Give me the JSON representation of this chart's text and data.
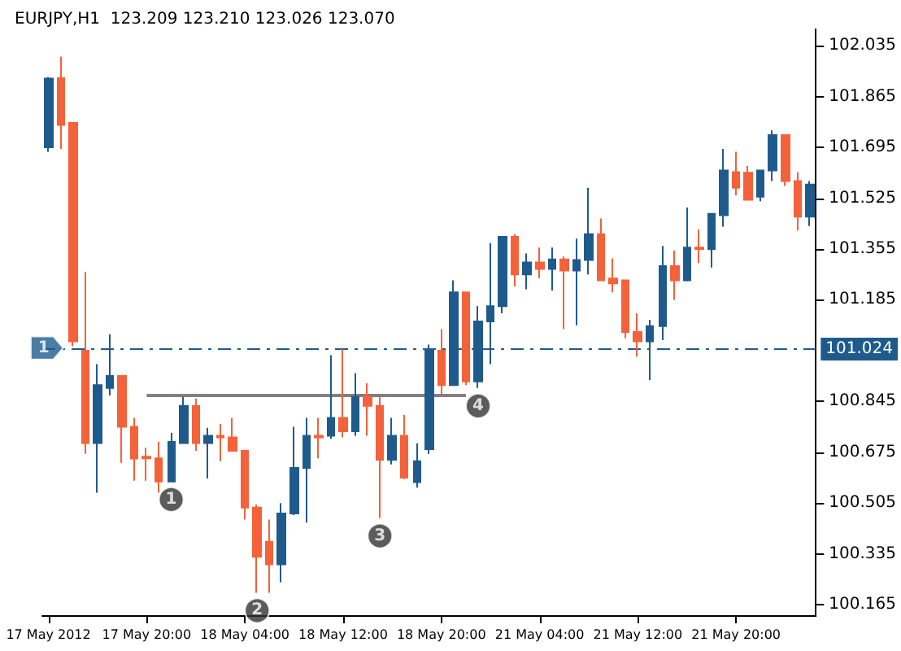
{
  "chart_data": {
    "type": "candlestick",
    "title": "EURJPY,H1  123.209 123.210 123.026 123.070",
    "categories": [
      "17 May 2012",
      null,
      null,
      null,
      null,
      null,
      null,
      null,
      "17 May 20:00",
      null,
      null,
      null,
      null,
      null,
      null,
      null,
      "18 May 04:00",
      null,
      null,
      null,
      null,
      null,
      null,
      null,
      "18 May 12:00",
      null,
      null,
      null,
      null,
      null,
      null,
      null,
      "18 May 20:00",
      null,
      null,
      null,
      null,
      null,
      null,
      null,
      "21 May 04:00",
      null,
      null,
      null,
      null,
      null,
      null,
      null,
      "21 May 12:00",
      null,
      null,
      null,
      null,
      null,
      null,
      null,
      "21 May 20:00",
      null,
      null,
      null,
      null,
      null,
      null
    ],
    "series": [
      {
        "ohlc": [
          [
            101.695,
            101.93,
            101.68,
            101.925
          ],
          [
            101.927,
            101.999,
            101.69,
            101.77
          ],
          [
            101.777,
            101.78,
            101.03,
            101.046
          ],
          [
            101.015,
            101.278,
            100.67,
            100.706
          ],
          [
            100.706,
            100.97,
            100.54,
            100.9
          ],
          [
            100.89,
            101.07,
            100.865,
            100.93
          ],
          [
            100.93,
            100.93,
            100.64,
            100.76
          ],
          [
            100.76,
            100.79,
            100.58,
            100.654
          ],
          [
            100.655,
            100.69,
            100.58,
            100.66
          ],
          [
            100.655,
            100.71,
            100.54,
            100.577
          ],
          [
            100.577,
            100.74,
            100.577,
            100.71
          ],
          [
            100.706,
            100.86,
            100.706,
            100.83
          ],
          [
            100.83,
            100.855,
            100.68,
            100.706
          ],
          [
            100.706,
            100.757,
            100.587,
            100.73
          ],
          [
            100.73,
            100.77,
            100.645,
            100.725
          ],
          [
            100.725,
            100.79,
            100.68,
            100.68
          ],
          [
            100.68,
            100.68,
            100.45,
            100.49
          ],
          [
            100.49,
            100.5,
            100.205,
            100.325
          ],
          [
            100.376,
            100.45,
            100.205,
            100.3
          ],
          [
            100.3,
            100.505,
            100.24,
            100.47
          ],
          [
            100.47,
            100.76,
            100.465,
            100.623
          ],
          [
            100.623,
            100.79,
            100.44,
            100.73
          ],
          [
            100.73,
            100.79,
            100.655,
            100.725
          ],
          [
            100.73,
            101.0,
            100.72,
            100.79
          ],
          [
            100.79,
            101.02,
            100.725,
            100.745
          ],
          [
            100.745,
            100.94,
            100.73,
            100.86
          ],
          [
            100.86,
            100.906,
            100.73,
            100.83
          ],
          [
            100.83,
            100.86,
            100.455,
            100.65
          ],
          [
            100.65,
            100.79,
            100.634,
            100.73
          ],
          [
            100.73,
            100.8,
            100.585,
            100.59
          ],
          [
            100.575,
            100.705,
            100.557,
            100.645
          ],
          [
            100.685,
            101.035,
            100.67,
            101.015
          ],
          [
            101.015,
            101.087,
            100.87,
            100.9
          ],
          [
            100.9,
            101.25,
            100.9,
            101.21
          ],
          [
            101.21,
            101.21,
            100.9,
            100.912
          ],
          [
            100.912,
            101.164,
            100.89,
            101.113
          ],
          [
            101.113,
            101.375,
            100.97,
            101.164
          ],
          [
            101.164,
            101.396,
            101.14,
            101.396
          ],
          [
            101.396,
            101.405,
            101.23,
            101.27
          ],
          [
            101.27,
            101.34,
            101.22,
            101.31
          ],
          [
            101.31,
            101.36,
            101.257,
            101.288
          ],
          [
            101.288,
            101.36,
            101.216,
            101.32
          ],
          [
            101.32,
            101.33,
            101.087,
            101.283
          ],
          [
            101.283,
            101.39,
            101.1,
            101.318
          ],
          [
            101.318,
            101.56,
            101.27,
            101.405
          ],
          [
            101.405,
            101.457,
            101.25,
            101.25
          ],
          [
            101.256,
            101.324,
            101.21,
            101.24
          ],
          [
            101.25,
            101.25,
            101.056,
            101.077
          ],
          [
            101.077,
            101.14,
            100.995,
            101.046
          ],
          [
            101.046,
            101.118,
            100.917,
            101.097
          ],
          [
            101.097,
            101.365,
            101.05,
            101.298
          ],
          [
            101.298,
            101.35,
            101.185,
            101.25
          ],
          [
            101.25,
            101.494,
            101.247,
            101.36
          ],
          [
            101.36,
            101.42,
            101.308,
            101.355
          ],
          [
            101.355,
            101.473,
            101.293,
            101.473
          ],
          [
            101.468,
            101.69,
            101.43,
            101.618
          ],
          [
            101.612,
            101.68,
            101.535,
            101.56
          ],
          [
            101.61,
            101.633,
            101.52,
            101.52
          ],
          [
            101.53,
            101.618,
            101.515,
            101.618
          ],
          [
            101.618,
            101.752,
            101.582,
            101.736
          ],
          [
            101.736,
            101.736,
            101.566,
            101.582
          ],
          [
            101.582,
            101.612,
            101.417,
            101.463
          ],
          [
            101.463,
            101.582,
            101.432,
            101.571
          ]
        ],
        "colors": [
          "#1e5b8c",
          "#f4623a",
          "#f4623a",
          "#f4623a",
          "#1e5b8c",
          "#1e5b8c",
          "#f4623a",
          "#f4623a",
          "#f4623a",
          "#f4623a",
          "#1e5b8c",
          "#1e5b8c",
          "#f4623a",
          "#1e5b8c",
          "#f4623a",
          "#f4623a",
          "#f4623a",
          "#f4623a",
          "#f4623a",
          "#1e5b8c",
          "#1e5b8c",
          "#1e5b8c",
          "#f4623a",
          "#1e5b8c",
          "#f4623a",
          "#1e5b8c",
          "#f4623a",
          "#f4623a",
          "#1e5b8c",
          "#f4623a",
          "#1e5b8c",
          "#1e5b8c",
          "#f4623a",
          "#1e5b8c",
          "#f4623a",
          "#1e5b8c",
          "#1e5b8c",
          "#1e5b8c",
          "#f4623a",
          "#1e5b8c",
          "#f4623a",
          "#1e5b8c",
          "#f4623a",
          "#1e5b8c",
          "#1e5b8c",
          "#f4623a",
          "#f4623a",
          "#f4623a",
          "#f4623a",
          "#1e5b8c",
          "#1e5b8c",
          "#f4623a",
          "#1e5b8c",
          "#f4623a",
          "#1e5b8c",
          "#1e5b8c",
          "#f4623a",
          "#f4623a",
          "#1e5b8c",
          "#1e5b8c",
          "#f4623a",
          "#f4623a",
          "#1e5b8c"
        ]
      },
      {
        "type": "line",
        "values": [
          null,
          null,
          null,
          null,
          null,
          null,
          null,
          null,
          100.865,
          100.865,
          100.865,
          100.865,
          100.865,
          100.865,
          100.865,
          100.865,
          100.865,
          100.865,
          100.865,
          100.865,
          100.865,
          100.865,
          100.865,
          100.865,
          100.865,
          100.865,
          100.865,
          100.865,
          100.865,
          100.865,
          100.865,
          100.865,
          100.865,
          100.865,
          100.865,
          null,
          null,
          null,
          null,
          null,
          null,
          null,
          null,
          null,
          null,
          null,
          null,
          null,
          null,
          null,
          null,
          null,
          null,
          null,
          null,
          null,
          null,
          null,
          null,
          null,
          null,
          null,
          null
        ],
        "color": "#808080"
      }
    ],
    "ylim": [
      100.13,
      102.09
    ],
    "yticks": [
      100.165,
      100.335,
      100.505,
      100.675,
      100.845,
      101.185,
      101.355,
      101.525,
      101.695,
      101.865,
      102.035
    ],
    "ref_lines": [
      {
        "axis": "y",
        "value": 101.024,
        "label": "101.024",
        "color": "#1e5b8c",
        "line_style": "dashdot"
      }
    ],
    "annotations": [
      {
        "text": "1",
        "y": 101.024
      },
      {
        "text": "1",
        "y": 100.577
      },
      {
        "text": "2",
        "y": 100.205
      },
      {
        "text": "3",
        "y": 100.455
      },
      {
        "text": "4",
        "y": 100.89
      }
    ],
    "marker": "none"
  }
}
